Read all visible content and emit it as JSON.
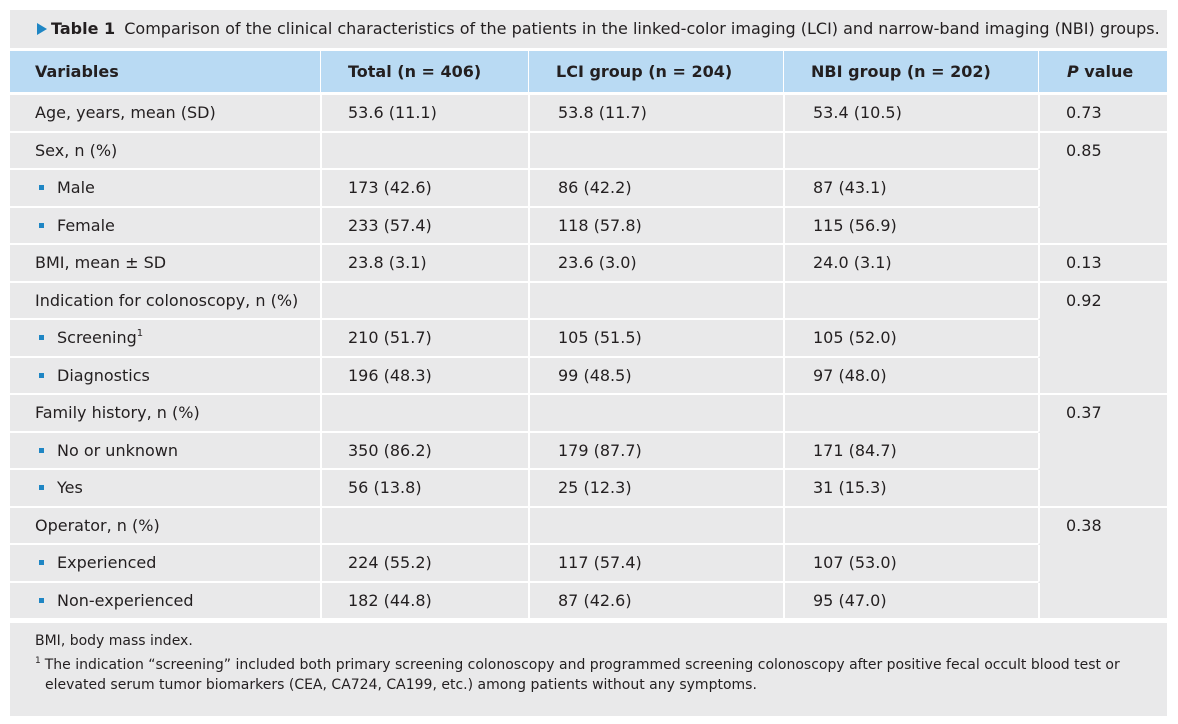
{
  "caption": {
    "label": "Table 1",
    "text": "Comparison of the clinical characteristics of the patients in the linked-color imaging (LCI) and narrow-band imaging (NBI) groups."
  },
  "header": {
    "variables": "Variables",
    "total": "Total (n = 406)",
    "lci": "LCI group (n = 204)",
    "nbi": "NBI group (n = 202)",
    "p_italic": "P",
    "p_rest": " value"
  },
  "rows": {
    "age": {
      "label": "Age, years, mean (SD)",
      "total": "53.6 (11.1)",
      "lci": "53.8 (11.7)",
      "nbi": "53.4 (10.5)",
      "p": "0.73"
    },
    "sex": {
      "label": "Sex, n (%)",
      "p": "0.85"
    },
    "male": {
      "label": "Male",
      "total": "173 (42.6)",
      "lci": "86 (42.2)",
      "nbi": "87 (43.1)"
    },
    "female": {
      "label": "Female",
      "total": "233 (57.4)",
      "lci": "118 (57.8)",
      "nbi": "115 (56.9)"
    },
    "bmi": {
      "label": "BMI, mean ± SD",
      "total": "23.8 (3.1)",
      "lci": "23.6 (3.0)",
      "nbi": "24.0 (3.1)",
      "p": "0.13"
    },
    "indication": {
      "label": "Indication for colonoscopy, n (%)",
      "p": "0.92"
    },
    "screening": {
      "label": "Screening",
      "sup": "1",
      "total": "210 (51.7)",
      "lci": "105 (51.5)",
      "nbi": "105 (52.0)"
    },
    "diagnostics": {
      "label": "Diagnostics",
      "total": "196 (48.3)",
      "lci": "99 (48.5)",
      "nbi": "97 (48.0)"
    },
    "family": {
      "label": "Family history, n (%)",
      "p": "0.37"
    },
    "no_unknown": {
      "label": "No or unknown",
      "total": "350 (86.2)",
      "lci": "179 (87.7)",
      "nbi": "171 (84.7)"
    },
    "yes": {
      "label": "Yes",
      "total": "56 (13.8)",
      "lci": "25 (12.3)",
      "nbi": "31 (15.3)"
    },
    "operator": {
      "label": "Operator, n (%)",
      "p": "0.38"
    },
    "experienced": {
      "label": "Experienced",
      "total": "224 (55.2)",
      "lci": "117 (57.4)",
      "nbi": "107 (53.0)"
    },
    "non_experienced": {
      "label": "Non-experienced",
      "total": "182 (44.8)",
      "lci": "87 (42.6)",
      "nbi": "95 (47.0)"
    }
  },
  "notes": {
    "abbrev": "BMI, body mass index.",
    "fn1_mark": "1",
    "fn1_text": "The indication “screening” included both primary screening colonoscopy and programmed screening colonoscopy after positive fecal occult blood test or elevated serum tumor biomarkers (CEA, CA724, CA199, etc.) among patients without any symptoms."
  },
  "colors": {
    "header_bg": "#b9daf3",
    "panel_bg": "#e9e9ea",
    "accent": "#1f86c4"
  }
}
